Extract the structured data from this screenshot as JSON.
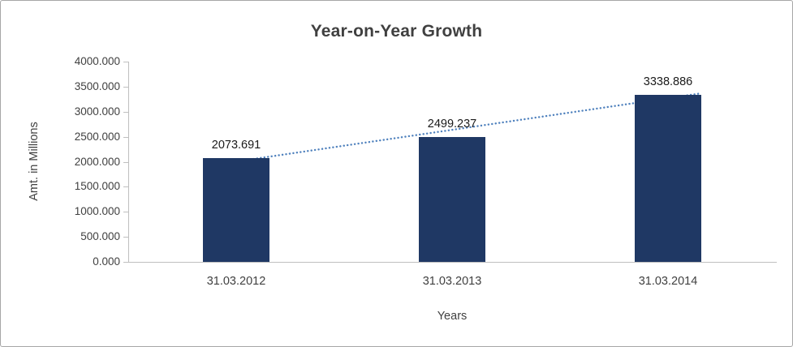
{
  "chart_data": {
    "type": "bar",
    "title": "Year-on-Year Growth",
    "categories": [
      "31.03.2012",
      "31.03.2013",
      "31.03.2014"
    ],
    "values": [
      2073.691,
      2499.237,
      3338.886
    ],
    "value_labels": [
      "2073.691",
      "2499.237",
      "3338.886"
    ],
    "xlabel": "Years",
    "ylabel": "Amt. in Millions",
    "ylim": [
      0,
      4000
    ],
    "ytick_step": 500,
    "ytick_labels": [
      "0.000",
      "500.000",
      "1000.000",
      "1500.000",
      "2000.000",
      "2500.000",
      "3000.000",
      "3500.000",
      "4000.000"
    ],
    "grid": false,
    "legend": "none",
    "bar_color": "#1F3864",
    "trendline": {
      "type": "linear",
      "style": "dotted",
      "color": "#4F81BD"
    }
  }
}
